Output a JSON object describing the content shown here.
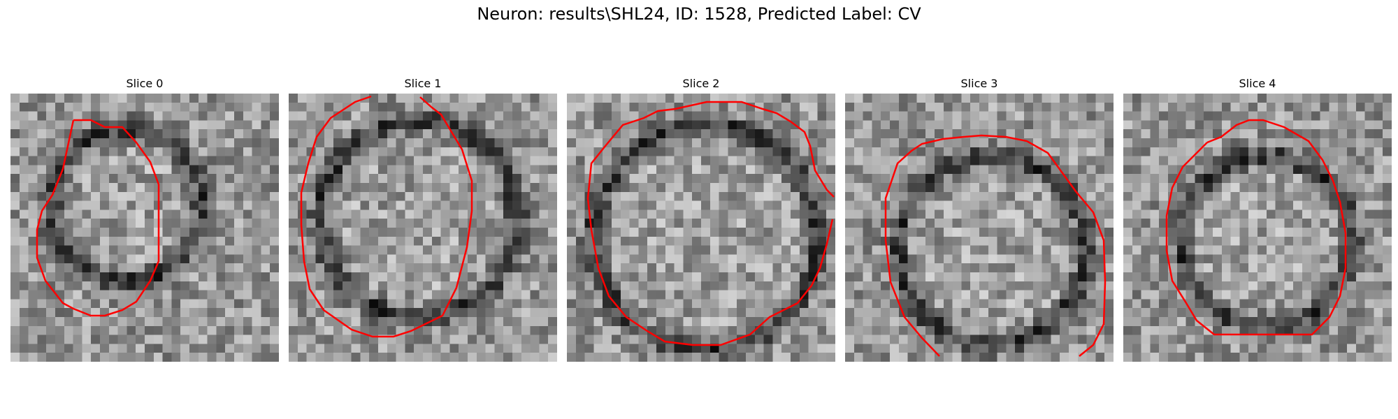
{
  "figure": {
    "title": "Neuron: results\\SHL24, ID: 1528, Predicted Label: CV"
  },
  "panels": [
    {
      "title": "Slice 0",
      "contour_color": "#ff0000"
    },
    {
      "title": "Slice 1",
      "contour_color": "#ff0000"
    },
    {
      "title": "Slice 2",
      "contour_color": "#ff0000"
    },
    {
      "title": "Slice 3",
      "contour_color": "#ff0000"
    },
    {
      "title": "Slice 4",
      "contour_color": "#ff0000"
    }
  ],
  "colors": {
    "background": "#ffffff",
    "contour": "#ff0000"
  }
}
